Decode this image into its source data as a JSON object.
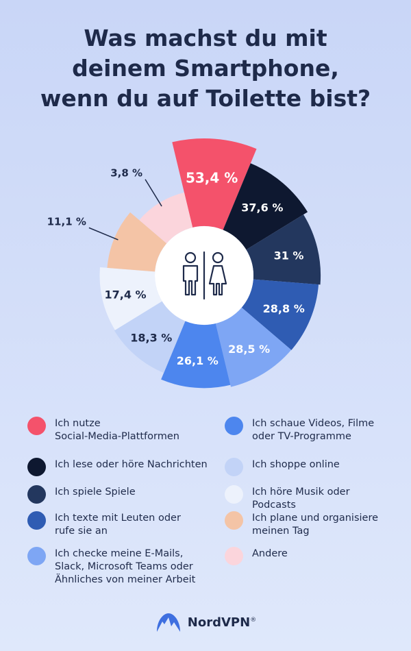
{
  "title_lines": [
    "Was machst du mit",
    "deinem Smartphone,",
    "wenn du auf Toilette bist?"
  ],
  "chart_data": {
    "type": "pie",
    "variant": "donut",
    "slices": [
      {
        "label": "Ich nutze Social-Media-Plattformen",
        "value": 53.4,
        "value_label": "53,4 %",
        "color": "#f4526b"
      },
      {
        "label": "Ich lese oder höre Nachrichten",
        "value": 37.6,
        "value_label": "37,6 %",
        "color": "#0e1830"
      },
      {
        "label": "Ich spiele Spiele",
        "value": 31,
        "value_label": "31 %",
        "color": "#23375e"
      },
      {
        "label": "Ich texte mit Leuten oder rufe sie an",
        "value": 28.8,
        "value_label": "28,8 %",
        "color": "#2f5cb3"
      },
      {
        "label": "Ich checke meine E-Mails, Slack, Microsoft Teams oder Ähnliches von meiner Arbeit",
        "value": 28.5,
        "value_label": "28,5 %",
        "color": "#7ea6f4"
      },
      {
        "label": "Ich schaue Videos, Filme oder TV-Programme",
        "value": 26.1,
        "value_label": "26,1 %",
        "color": "#4d86ee"
      },
      {
        "label": "Ich shoppe online",
        "value": 18.3,
        "value_label": "18,3 %",
        "color": "#c2d3f7"
      },
      {
        "label": "Ich höre Musik oder Podcasts",
        "value": 17.4,
        "value_label": "17,4 %",
        "color": "#edf2fc"
      },
      {
        "label": "Ich plane und organisiere meinen Tag",
        "value": 11.1,
        "value_label": "11,1 %",
        "color": "#f4c4a6"
      },
      {
        "label": "Andere",
        "value": 3.8,
        "value_label": "3,8 %",
        "color": "#fbd5dc"
      }
    ],
    "legend_placement": "bottom"
  },
  "legend": {
    "left": [
      {
        "lines": [
          "Ich nutze",
          "Social-Media-Plattformen"
        ],
        "color": "#f4526b"
      },
      {
        "lines": [
          "Ich lese oder höre Nachrichten"
        ],
        "color": "#0e1830"
      },
      {
        "lines": [
          "Ich spiele Spiele"
        ],
        "color": "#23375e"
      },
      {
        "lines": [
          "Ich texte mit Leuten oder",
          "rufe sie an"
        ],
        "color": "#2f5cb3"
      },
      {
        "lines": [
          "Ich checke meine E-Mails,",
          "Slack, Microsoft Teams oder",
          "Ähnliches von meiner Arbeit"
        ],
        "color": "#7ea6f4"
      }
    ],
    "right": [
      {
        "lines": [
          "Ich schaue Videos, Filme",
          "oder TV-Programme"
        ],
        "color": "#4d86ee"
      },
      {
        "lines": [
          "Ich shoppe online"
        ],
        "color": "#c2d3f7"
      },
      {
        "lines": [
          "Ich höre Musik oder",
          "Podcasts"
        ],
        "color": "#edf2fc"
      },
      {
        "lines": [
          "Ich plane und organisiere",
          "meinen Tag"
        ],
        "color": "#f4c4a6"
      },
      {
        "lines": [
          "Andere"
        ],
        "color": "#fbd5dc"
      }
    ]
  },
  "center_icon": "restroom-icon",
  "brand": {
    "name": "NordVPN",
    "mark": "®",
    "icon": "nordvpn-logo-icon",
    "color": "#3e6fe0"
  }
}
